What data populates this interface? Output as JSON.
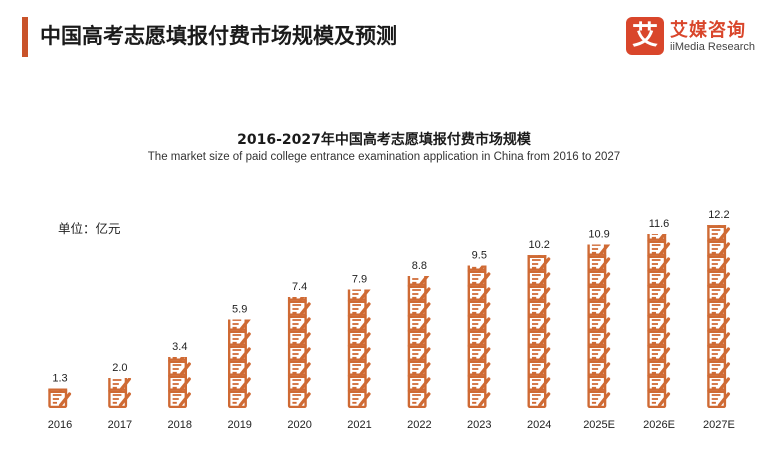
{
  "header": {
    "title": "中国高考志愿填报付费市场规模及预测",
    "logo_mark": "艾",
    "logo_cn": "艾媒咨询",
    "logo_en": "iiMedia Research"
  },
  "colors": {
    "accent": "#c9532a",
    "bar_icon": "#cf6a34",
    "logo": "#d9462b"
  },
  "chart_data": {
    "type": "bar",
    "title": "2016-2027年中国高考志愿填报付费市场规模",
    "subtitle": "The market size of paid college entrance examination application in China from 2016 to 2027",
    "unit_label": "单位：亿元",
    "categories": [
      "2016",
      "2017",
      "2018",
      "2019",
      "2020",
      "2021",
      "2022",
      "2023",
      "2024",
      "2025E",
      "2026E",
      "2027E"
    ],
    "values": [
      1.3,
      2.0,
      3.4,
      5.9,
      7.4,
      7.9,
      8.8,
      9.5,
      10.2,
      10.9,
      11.6,
      12.2
    ],
    "value_labels": [
      "1.3",
      "2.0",
      "3.4",
      "5.9",
      "7.4",
      "7.9",
      "8.8",
      "9.5",
      "10.2",
      "10.9",
      "11.6",
      "12.2"
    ],
    "ylim": [
      0,
      12.2
    ],
    "grid": false,
    "legend": "none",
    "style": "pictograph-stacked-document-icons"
  }
}
